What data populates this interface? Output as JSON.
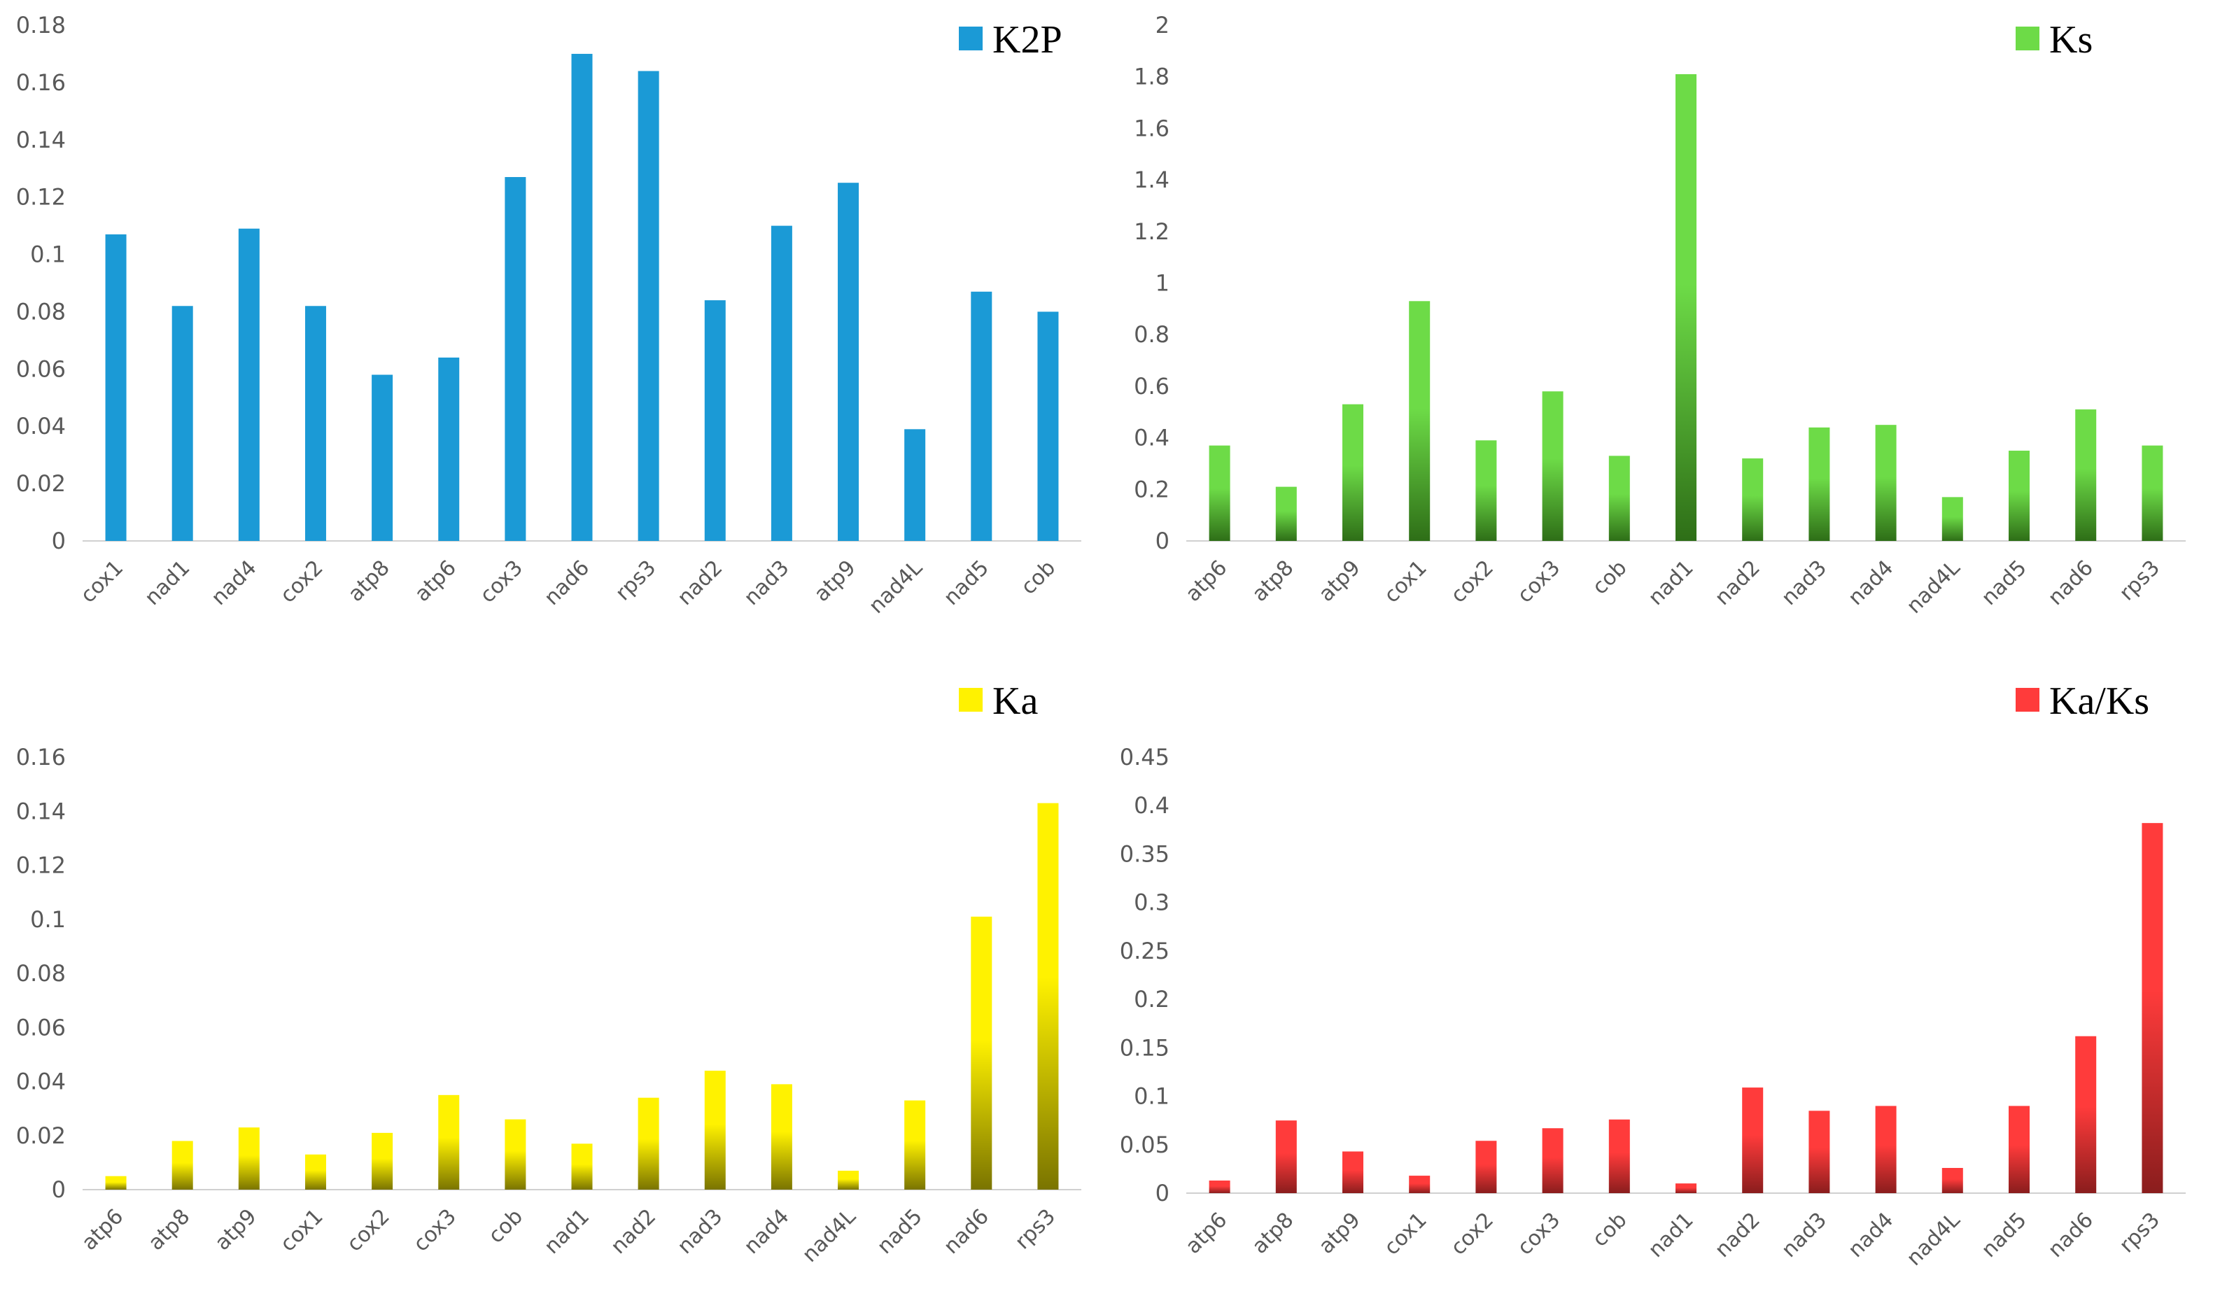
{
  "chart_data": [
    {
      "type": "bar",
      "legend": "K2P",
      "legend_position": "top-right",
      "color": "#1B9AD6",
      "gradient": false,
      "categories": [
        "cox1",
        "nad1",
        "nad4",
        "cox2",
        "atp8",
        "atp6",
        "cox3",
        "nad6",
        "rps3",
        "nad2",
        "nad3",
        "atp9",
        "nad4L",
        "nad5",
        "cob"
      ],
      "values": [
        0.107,
        0.082,
        0.109,
        0.082,
        0.058,
        0.064,
        0.127,
        0.17,
        0.164,
        0.084,
        0.11,
        0.125,
        0.039,
        0.087,
        0.08
      ],
      "ylim": [
        0,
        0.18
      ],
      "yticks": [
        "0",
        "0.02",
        "0.04",
        "0.06",
        "0.08",
        "0.1",
        "0.12",
        "0.14",
        "0.16",
        "0.18"
      ]
    },
    {
      "type": "bar",
      "legend": "Ks",
      "legend_position": "top-right",
      "color": "#6DDB47",
      "color_dark": "#2E6E17",
      "gradient": true,
      "categories": [
        "atp6",
        "atp8",
        "atp9",
        "cox1",
        "cox2",
        "cox3",
        "cob",
        "nad1",
        "nad2",
        "nad3",
        "nad4",
        "nad4L",
        "nad5",
        "nad6",
        "rps3"
      ],
      "values": [
        0.37,
        0.21,
        0.53,
        0.93,
        0.39,
        0.58,
        0.33,
        1.81,
        0.32,
        0.44,
        0.45,
        0.17,
        0.35,
        0.51,
        0.37
      ],
      "ylim": [
        0,
        2
      ],
      "yticks": [
        "0",
        "0.2",
        "0.4",
        "0.6",
        "0.8",
        "1",
        "1.2",
        "1.4",
        "1.6",
        "1.8",
        "2"
      ]
    },
    {
      "type": "bar",
      "legend": "Ka",
      "legend_position": "top-right",
      "color": "#FFF200",
      "color_dark": "#7A7400",
      "gradient": true,
      "categories": [
        "atp6",
        "atp8",
        "atp9",
        "cox1",
        "cox2",
        "cox3",
        "cob",
        "nad1",
        "nad2",
        "nad3",
        "nad4",
        "nad4L",
        "nad5",
        "nad6",
        "rps3"
      ],
      "values": [
        0.005,
        0.018,
        0.023,
        0.013,
        0.021,
        0.035,
        0.026,
        0.017,
        0.034,
        0.044,
        0.039,
        0.007,
        0.033,
        0.101,
        0.143
      ],
      "ylim": [
        0,
        0.16
      ],
      "yticks": [
        "0",
        "0.02",
        "0.04",
        "0.06",
        "0.08",
        "0.1",
        "0.12",
        "0.14",
        "0.16"
      ]
    },
    {
      "type": "bar",
      "legend": "Ka/Ks",
      "legend_position": "top-right",
      "color": "#FF3B3B",
      "color_dark": "#8A1D1D",
      "gradient": true,
      "categories": [
        "atp6",
        "atp8",
        "atp9",
        "cox1",
        "cox2",
        "cox3",
        "cob",
        "nad1",
        "nad2",
        "nad3",
        "nad4",
        "nad4L",
        "nad5",
        "nad6",
        "rps3"
      ],
      "values": [
        0.013,
        0.075,
        0.043,
        0.018,
        0.054,
        0.067,
        0.076,
        0.01,
        0.109,
        0.085,
        0.09,
        0.026,
        0.09,
        0.162,
        0.382
      ],
      "ylim": [
        0,
        0.45
      ],
      "yticks": [
        "0",
        "0.05",
        "0.1",
        "0.15",
        "0.2",
        "0.25",
        "0.3",
        "0.35",
        "0.4",
        "0.45"
      ]
    }
  ]
}
